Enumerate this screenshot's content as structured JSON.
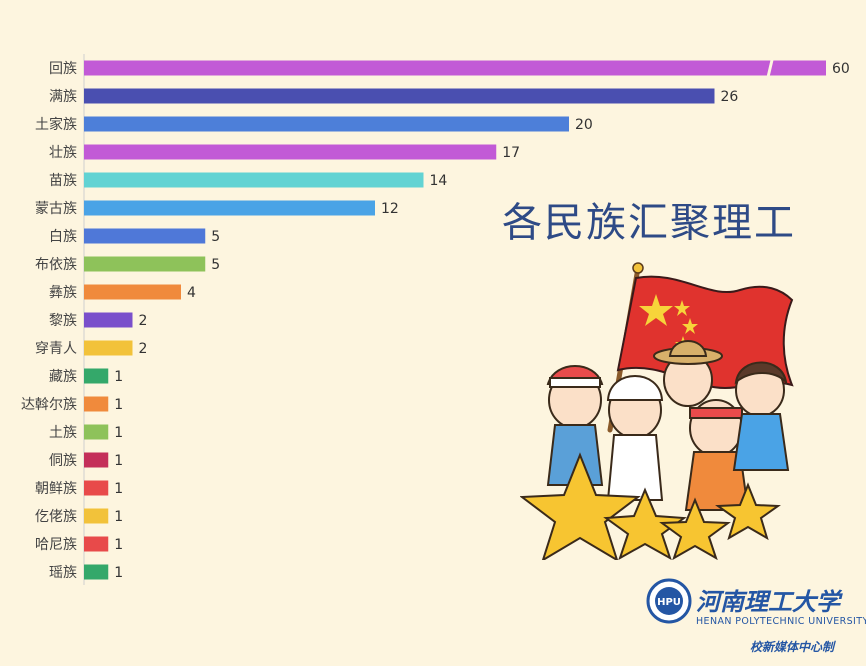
{
  "headline": "各民族汇聚理工",
  "logo": {
    "name_cn": "河南理工大学",
    "name_en": "HENAN POLYTECHNIC UNIVERSITY",
    "credit": "校新媒体中心制",
    "emblem_text": "HPU"
  },
  "chart_data": {
    "type": "bar",
    "orientation": "horizontal",
    "axis_break": true,
    "categories": [
      "回族",
      "满族",
      "土家族",
      "壮族",
      "苗族",
      "蒙古族",
      "白族",
      "布依族",
      "彝族",
      "黎族",
      "穿青人",
      "藏族",
      "达斡尔族",
      "土族",
      "侗族",
      "朝鲜族",
      "仡佬族",
      "哈尼族",
      "瑶族"
    ],
    "values": [
      60,
      26,
      20,
      17,
      14,
      12,
      5,
      5,
      4,
      2,
      2,
      1,
      1,
      1,
      1,
      1,
      1,
      1,
      1
    ],
    "value_labels": [
      "60",
      "26",
      "20",
      "17",
      "14",
      "12",
      "5",
      "5",
      "4",
      "2",
      "2",
      "1",
      "1",
      "1",
      "1",
      "1",
      "1",
      "1",
      "1"
    ],
    "colors": [
      "#c25ad6",
      "#4a4fb0",
      "#4d7fd9",
      "#c25ad6",
      "#62d3d3",
      "#4aa3e6",
      "#4f78d8",
      "#8ec25a",
      "#f08a3c",
      "#7a4fcb",
      "#f2c23a",
      "#34a86a",
      "#f08a3c",
      "#8ec25a",
      "#c42f5a",
      "#e84a4a",
      "#f2c23a",
      "#e84a4a",
      "#34a86a"
    ]
  }
}
